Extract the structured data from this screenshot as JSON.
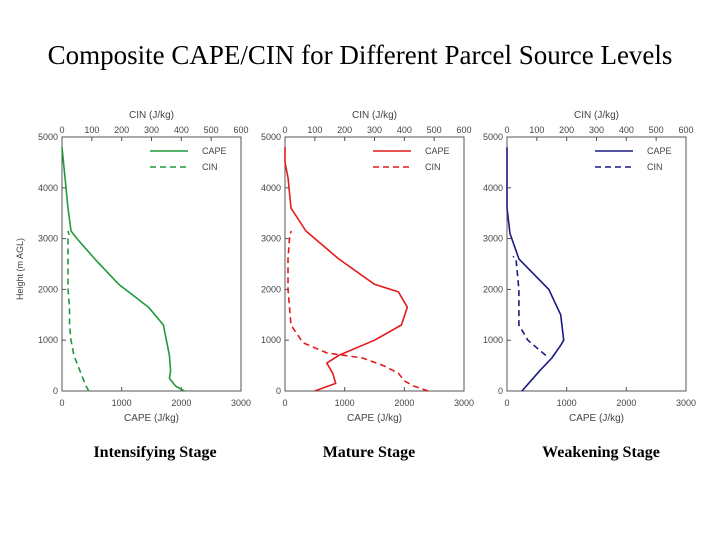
{
  "title": "Composite CAPE/CIN for Different Parcel Source Levels",
  "shared": {
    "top_axis_label": "CIN (J/kg)",
    "bottom_axis_label": "CAPE (J/kg)",
    "y_axis_label": "Height (m AGL)",
    "cin_ticks": [
      "0",
      "100",
      "200",
      "300",
      "400",
      "500",
      "600"
    ],
    "cape_ticks": [
      "0",
      "1000",
      "2000",
      "3000"
    ],
    "height_ticks": [
      "0",
      "1000",
      "2000",
      "3000",
      "4000",
      "5000"
    ]
  },
  "chart_data": [
    {
      "type": "line",
      "stage": "Intensifying Stage",
      "color": "#1f9a3a",
      "legend": [
        "CAPE",
        "CIN"
      ],
      "cape_xlim": [
        0,
        3000
      ],
      "cin_xlim": [
        0,
        600
      ],
      "ylim": [
        0,
        5000
      ],
      "cape": {
        "cape_values": [
          2050,
          1900,
          1800,
          1820,
          1800,
          1750,
          1700,
          1450,
          950,
          550,
          250,
          150,
          100,
          50,
          0
        ],
        "height_m": [
          0,
          100,
          250,
          400,
          700,
          1000,
          1300,
          1650,
          2100,
          2600,
          3000,
          3150,
          3600,
          4200,
          4800
        ]
      },
      "cin": {
        "cin_values": [
          90,
          80,
          60,
          40,
          30,
          25,
          25,
          20,
          20,
          20,
          25,
          20
        ],
        "height_m": [
          0,
          100,
          400,
          700,
          1000,
          1300,
          1650,
          2000,
          2500,
          3000,
          3050,
          3150
        ]
      }
    },
    {
      "type": "line",
      "stage": "Mature Stage",
      "color": "#e41a1c",
      "legend": [
        "CAPE",
        "CIN"
      ],
      "cape_xlim": [
        0,
        3000
      ],
      "cin_xlim": [
        0,
        600
      ],
      "ylim": [
        0,
        5000
      ],
      "cape": {
        "cape_values": [
          500,
          850,
          800,
          700,
          900,
          1500,
          1950,
          2050,
          1900,
          1500,
          900,
          350,
          100,
          50,
          0,
          0
        ],
        "height_m": [
          0,
          150,
          350,
          550,
          700,
          1000,
          1300,
          1650,
          1950,
          2100,
          2600,
          3150,
          3600,
          4200,
          4500,
          4800
        ]
      },
      "cin": {
        "cin_values": [
          480,
          430,
          400,
          380,
          330,
          260,
          200,
          140,
          60,
          20,
          10,
          10,
          15,
          20
        ],
        "height_m": [
          0,
          100,
          200,
          350,
          500,
          650,
          700,
          750,
          950,
          1300,
          2000,
          2600,
          3000,
          3150
        ]
      }
    },
    {
      "type": "line",
      "stage": "Weakening Stage",
      "color": "#1a1a80",
      "legend": [
        "CAPE",
        "CIN"
      ],
      "cape_xlim": [
        0,
        3000
      ],
      "cin_xlim": [
        0,
        600
      ],
      "ylim": [
        0,
        5000
      ],
      "cape": {
        "cape_values": [
          250,
          400,
          550,
          750,
          900,
          950,
          900,
          700,
          200,
          50,
          0,
          0,
          0
        ],
        "height_m": [
          0,
          200,
          400,
          650,
          900,
          1000,
          1500,
          2000,
          2600,
          3100,
          3600,
          4200,
          4800
        ]
      },
      "cin": {
        "cin_values": [
          130,
          110,
          70,
          40,
          40,
          30,
          20
        ],
        "height_m": [
          700,
          800,
          1000,
          1300,
          2000,
          2600,
          2650
        ]
      }
    }
  ]
}
